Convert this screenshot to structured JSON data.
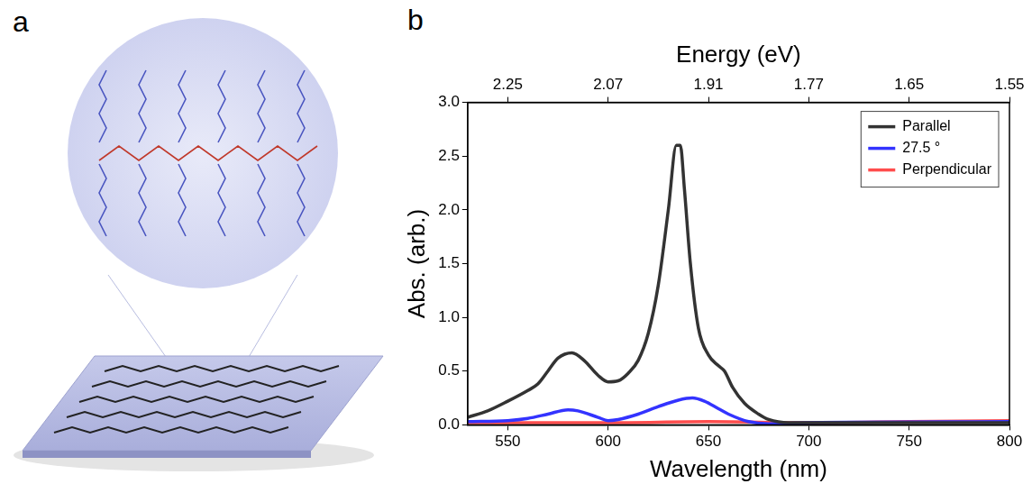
{
  "panel_labels": [
    "a",
    "b"
  ],
  "chart_data": {
    "type": "line",
    "xlabel": "Wavelength (nm)",
    "ylabel": "Abs. (arb.)",
    "x2label": "Energy (eV)",
    "xlim": [
      530,
      800
    ],
    "xticks": [
      550,
      600,
      650,
      700,
      750,
      800
    ],
    "x2lim": [
      530,
      800
    ],
    "x2ticks": [
      {
        "value": 550,
        "label": "2.25"
      },
      {
        "value": 600,
        "label": "2.07"
      },
      {
        "value": 650,
        "label": "1.91"
      },
      {
        "value": 700,
        "label": "1.77"
      },
      {
        "value": 750,
        "label": "1.65"
      },
      {
        "value": 800,
        "label": "1.55"
      }
    ],
    "ylim": [
      0,
      3
    ],
    "yticks": [
      {
        "value": 0,
        "label": "0.0"
      },
      {
        "value": 0.5,
        "label": "0.5"
      },
      {
        "value": 1,
        "label": "1.0"
      },
      {
        "value": 1.5,
        "label": "1.5"
      },
      {
        "value": 2,
        "label": "2.0"
      },
      {
        "value": 2.5,
        "label": "2.5"
      },
      {
        "value": 3,
        "label": "3.0"
      }
    ],
    "grid": false,
    "legend": "upper right",
    "series": [
      {
        "name": "Parallel",
        "color": "#333333",
        "x": [
          530,
          540,
          550,
          560,
          565,
          570,
          575,
          582,
          588,
          595,
          600,
          605,
          610,
          615,
          620,
          625,
          630,
          634,
          636,
          638,
          641,
          645,
          650,
          655,
          658,
          662,
          668,
          675,
          680,
          690,
          700,
          750,
          800
        ],
        "values": [
          0.07,
          0.13,
          0.22,
          0.32,
          0.38,
          0.5,
          0.62,
          0.67,
          0.6,
          0.46,
          0.4,
          0.41,
          0.48,
          0.6,
          0.85,
          1.3,
          2.0,
          2.6,
          2.6,
          2.2,
          1.5,
          0.9,
          0.65,
          0.55,
          0.5,
          0.35,
          0.2,
          0.1,
          0.05,
          0.02,
          0.02,
          0.02,
          0.02
        ]
      },
      {
        "name": "27.5 °",
        "color": "#3333ff",
        "x": [
          530,
          550,
          560,
          570,
          580,
          585,
          595,
          600,
          605,
          615,
          625,
          635,
          642,
          648,
          655,
          660,
          670,
          680,
          700,
          800
        ],
        "values": [
          0.03,
          0.04,
          0.06,
          0.1,
          0.14,
          0.13,
          0.07,
          0.04,
          0.05,
          0.1,
          0.17,
          0.23,
          0.25,
          0.22,
          0.15,
          0.1,
          0.03,
          0.01,
          0.02,
          0.03
        ]
      },
      {
        "name": "Perpendicular",
        "color": "#ff4d4d",
        "x": [
          530,
          600,
          650,
          700,
          750,
          800
        ],
        "values": [
          0.02,
          0.02,
          0.03,
          0.02,
          0.03,
          0.04
        ]
      }
    ]
  }
}
